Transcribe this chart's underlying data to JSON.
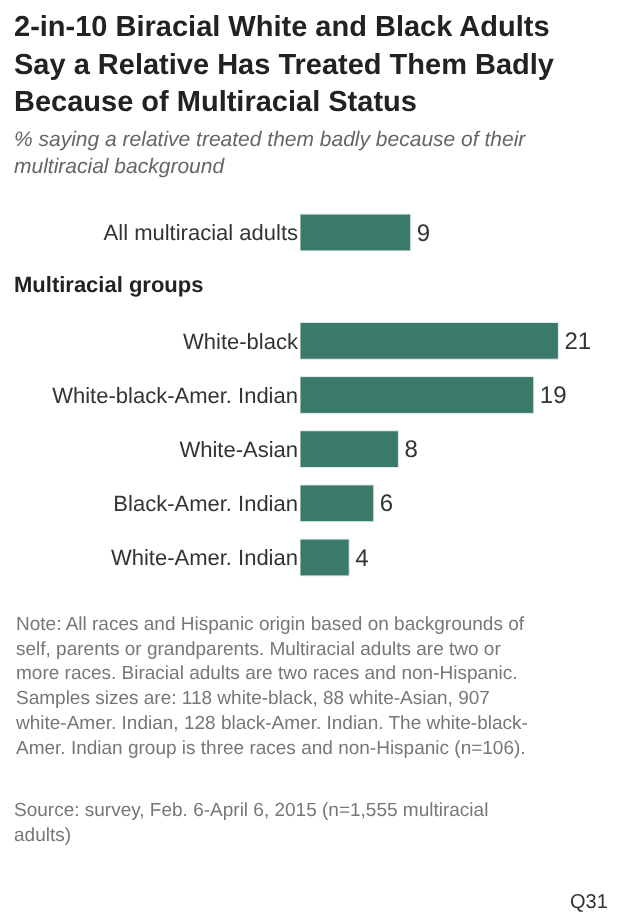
{
  "chart_data": {
    "type": "bar",
    "orientation": "horizontal",
    "title": "2-in-10 Biracial White and Black Adults Say a Relative Has Treated Them Badly Because of Multiracial Status",
    "subtitle": "% saying a relative treated them badly because of their multiracial background",
    "categories": [
      "All multiracial adults",
      "White-black",
      "White-black-Amer. Indian",
      "White-Asian",
      "Black-Amer. Indian",
      "White-Amer. Indian"
    ],
    "values": [
      9,
      21,
      19,
      8,
      6,
      4
    ],
    "color": "#3b7a68",
    "tick_labels": "y",
    "data_labels": true,
    "legend": false,
    "annotations": [
      "Multiracial groups",
      "Note: All races and Hispanic origin based on backgrounds of self, parents or grandparents. Multiracial adults are two or more races. Biracial adults are two races and non-Hispanic. Samples sizes are: 118 white-black, 88 white-Asian, 907 white-Amer. Indian, 128 black-Amer. Indian. The white-black-Amer. Indian group is three races and non-Hispanic (n=106).",
      "Source: survey, Feb. 6-April 6, 2015 (n=1,555 multiracial adults)",
      "Q31"
    ]
  }
}
